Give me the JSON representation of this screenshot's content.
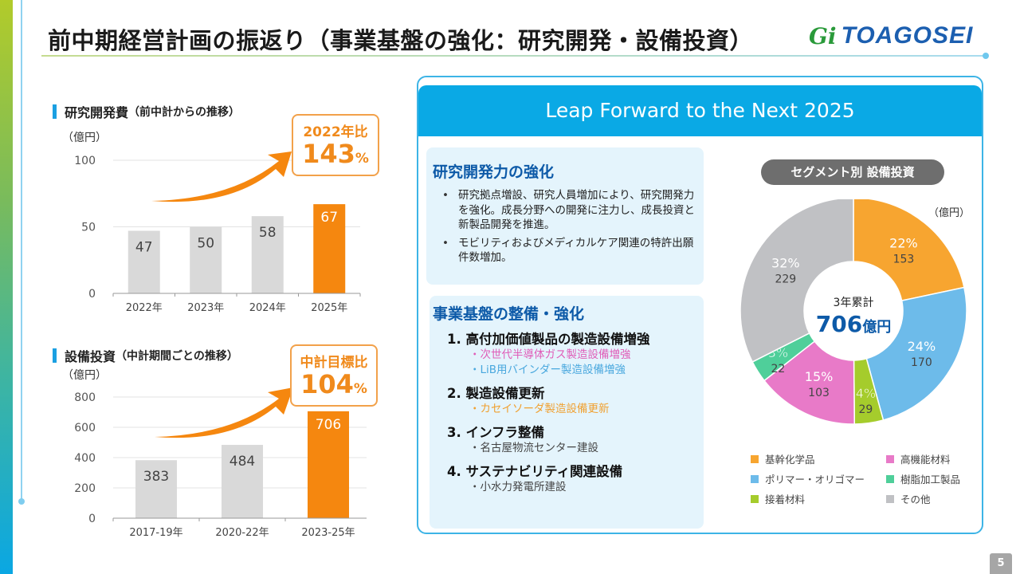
{
  "title": "前中期経営計画の振返り（事業基盤の強化：研究開発・設備投資）",
  "logo": {
    "mark": "Gi",
    "text": "TOAGOSEI"
  },
  "page_number": "5",
  "rd_chart": {
    "heading": "研究開発費",
    "heading_sub": "（前中計からの推移）",
    "unit": "（億円）",
    "callout_line1": "2022年比",
    "callout_value": "143",
    "callout_suffix": "%"
  },
  "capex_chart": {
    "heading": "設備投資",
    "heading_sub": "（中計期間ごとの推移）",
    "unit": "（億円）",
    "callout_line1": "中計目標比",
    "callout_value": "104",
    "callout_suffix": "%"
  },
  "panel": {
    "header": "Leap Forward to the Next 2025",
    "rd_box": {
      "title": "研究開発力の強化",
      "bullets": [
        "研究拠点増設、研究人員増加により、研究開発力を強化。成長分野への開発に注力し、成長投資と新製品開発を推進。",
        "モビリティおよびメディカルケア関連の特許出願件数増加。"
      ]
    },
    "base_box": {
      "title": "事業基盤の整備・強化",
      "items": [
        {
          "label": "1. 高付加価値製品の製造設備増強",
          "subs": [
            {
              "text": "・次世代半導体ガス製造設備増強",
              "color": "#e05cb8"
            },
            {
              "text": "・LiB用バインダー製造設備増強",
              "color": "#4aa8de"
            }
          ]
        },
        {
          "label": "2. 製造設備更新",
          "subs": [
            {
              "text": "・カセイソーダ製造設備更新",
              "color": "#f0a030"
            }
          ]
        },
        {
          "label": "3. インフラ整備",
          "subs": [
            {
              "text": "・名古屋物流センター建設",
              "color": "#444444"
            }
          ]
        },
        {
          "label": "4. サステナビリティ関連設備",
          "subs": [
            {
              "text": "・小水力発電所建設",
              "color": "#444444"
            }
          ]
        }
      ]
    },
    "segment_pill": "セグメント別 設備投資",
    "pie_unit": "（億円）",
    "center_label": "3年累計",
    "center_value": "706",
    "center_unit": "億円"
  },
  "chart_data": [
    {
      "type": "bar",
      "title": "研究開発費（前中計からの推移）",
      "ylabel": "億円",
      "categories": [
        "2022年",
        "2023年",
        "2024年",
        "2025年"
      ],
      "values": [
        47,
        50,
        58,
        67
      ],
      "highlight_index": 3,
      "ylim": [
        0,
        100
      ],
      "yticks": [
        0,
        50,
        100
      ],
      "grid": true,
      "annotation": "2022年比 143%"
    },
    {
      "type": "bar",
      "title": "設備投資（中計期間ごとの推移）",
      "ylabel": "億円",
      "categories": [
        "2017-19年",
        "2020-22年",
        "2023-25年"
      ],
      "values": [
        383,
        484,
        706
      ],
      "highlight_index": 2,
      "ylim": [
        0,
        800
      ],
      "yticks": [
        0,
        200,
        400,
        600,
        800
      ],
      "grid": true,
      "annotation": "中計目標比 104%"
    },
    {
      "type": "pie",
      "title": "セグメント別 設備投資",
      "unit": "億円",
      "total": 706,
      "slices": [
        {
          "label": "基幹化学品",
          "value": 153,
          "percent": "22%",
          "color": "#f7a530"
        },
        {
          "label": "ポリマー・オリゴマー",
          "value": 170,
          "percent": "24%",
          "color": "#6dbbea"
        },
        {
          "label": "接着材料",
          "value": 29,
          "percent": "4%",
          "color": "#a5cc2c"
        },
        {
          "label": "高機能材料",
          "value": 103,
          "percent": "15%",
          "color": "#e87ac8"
        },
        {
          "label": "樹脂加工製品",
          "value": 22,
          "percent": "3%",
          "color": "#4fcf9a"
        },
        {
          "label": "その他",
          "value": 229,
          "percent": "32%",
          "color": "#c0c1c4"
        }
      ],
      "legend_position": "bottom"
    }
  ],
  "colors": {
    "accent_orange": "#f5870f",
    "bar_gray": "#d9d9d9",
    "header_blue": "#0aa9e5",
    "title_blue": "#0d5aa8"
  }
}
